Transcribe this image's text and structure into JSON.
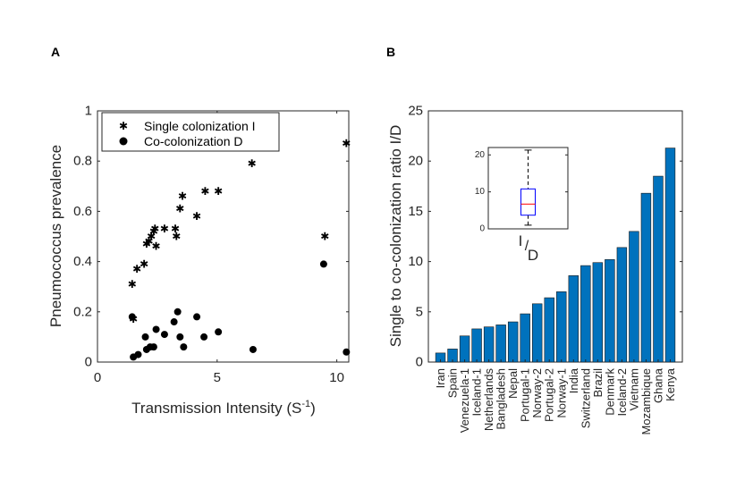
{
  "chart_data": [
    {
      "type": "scatter",
      "panel_label": "A",
      "xlabel_main": "Transmission Intensity (S",
      "xlabel_sup": "-1",
      "xlabel_close": ")",
      "ylabel": "Pneumococcus prevalence",
      "xlim": [
        0,
        10.5
      ],
      "ylim": [
        0,
        1
      ],
      "xticks": [
        "0",
        "5",
        "10"
      ],
      "yticks": [
        "0",
        "0.2",
        "0.4",
        "0.6",
        "0.8",
        "1"
      ],
      "legend_position": "top-left",
      "series": [
        {
          "name": "Single colonization I",
          "marker": "star",
          "points": [
            [
              1.45,
              0.31
            ],
            [
              1.5,
              0.17
            ],
            [
              1.65,
              0.37
            ],
            [
              1.95,
              0.39
            ],
            [
              2.05,
              0.47
            ],
            [
              2.15,
              0.48
            ],
            [
              2.25,
              0.5
            ],
            [
              2.35,
              0.52
            ],
            [
              2.4,
              0.53
            ],
            [
              2.45,
              0.46
            ],
            [
              2.8,
              0.53
            ],
            [
              3.25,
              0.53
            ],
            [
              3.3,
              0.5
            ],
            [
              3.45,
              0.61
            ],
            [
              3.55,
              0.66
            ],
            [
              4.15,
              0.58
            ],
            [
              4.5,
              0.68
            ],
            [
              5.05,
              0.68
            ],
            [
              6.45,
              0.79
            ],
            [
              9.5,
              0.5
            ],
            [
              10.4,
              0.87
            ]
          ]
        },
        {
          "name": "Co-colonization D",
          "marker": "dot",
          "points": [
            [
              1.45,
              0.18
            ],
            [
              1.5,
              0.02
            ],
            [
              1.7,
              0.03
            ],
            [
              2.0,
              0.1
            ],
            [
              2.05,
              0.05
            ],
            [
              2.2,
              0.06
            ],
            [
              2.35,
              0.06
            ],
            [
              2.45,
              0.13
            ],
            [
              2.8,
              0.11
            ],
            [
              3.2,
              0.16
            ],
            [
              3.35,
              0.2
            ],
            [
              3.45,
              0.1
            ],
            [
              3.6,
              0.06
            ],
            [
              4.15,
              0.18
            ],
            [
              4.45,
              0.1
            ],
            [
              5.05,
              0.12
            ],
            [
              6.5,
              0.05
            ],
            [
              9.45,
              0.39
            ],
            [
              10.4,
              0.04
            ]
          ]
        }
      ]
    },
    {
      "type": "bar",
      "panel_label": "B",
      "ylabel": "Single to co-colonization ratio I/D",
      "ylim": [
        0,
        25
      ],
      "yticks": [
        "0",
        "5",
        "10",
        "15",
        "20",
        "25"
      ],
      "bar_color": "#0072BD",
      "categories": [
        "Iran",
        "Spain",
        "Venezuela-1",
        "Iceland-1",
        "Netherlands",
        "Bangladesh",
        "Nepal",
        "Portugal-1",
        "Norway-2",
        "Portugal-2",
        "Norway-1",
        "India",
        "Switzerland",
        "Brazil",
        "Denmark",
        "Iceland-2",
        "Vietnam",
        "Mozambique",
        "Ghana",
        "Kenya"
      ],
      "values": [
        0.9,
        1.3,
        2.6,
        3.3,
        3.5,
        3.7,
        4.0,
        4.8,
        5.8,
        6.4,
        7.0,
        8.6,
        9.6,
        9.9,
        10.2,
        11.4,
        13.0,
        16.8,
        18.5,
        21.3
      ]
    },
    {
      "type": "box",
      "inset_of": "B",
      "ylim": [
        0,
        22
      ],
      "yticks": [
        "0",
        "10",
        "20"
      ],
      "whisker_low": 1.0,
      "q1": 3.7,
      "median": 6.7,
      "q3": 10.8,
      "whisker_high": 21.3,
      "box_color": "#0000FF",
      "median_color": "#FF0000",
      "xlabel_num": "I",
      "xlabel_den": "D"
    }
  ]
}
